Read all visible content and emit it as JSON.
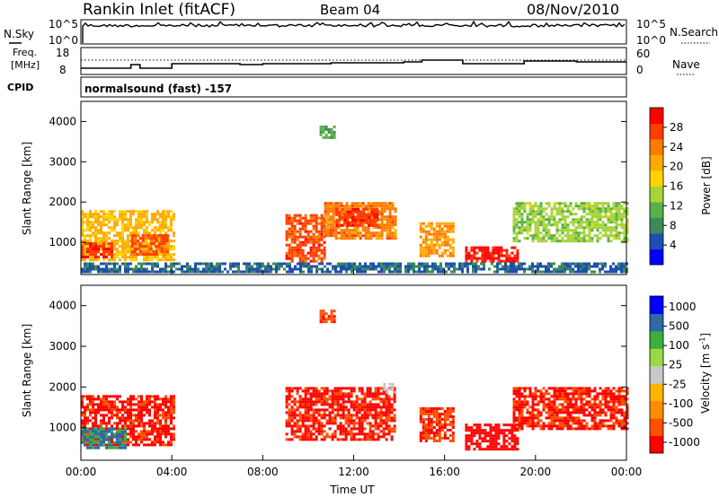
{
  "header": {
    "station": "Rankin Inlet (fitACF)",
    "beam": "Beam 04",
    "date": "08/Nov/2010"
  },
  "nsky_panel": {
    "left_label": "N.Sky",
    "right_label": "N.Search",
    "left_ticks": [
      "10^5",
      "10^0"
    ],
    "right_ticks": [
      "10^5",
      "10^0"
    ]
  },
  "freq_panel": {
    "left_label_1": "Freq.",
    "left_label_2": "[MHz]",
    "right_label": "Nave",
    "left_ticks": [
      "18",
      "8"
    ],
    "right_ticks": [
      "60",
      "0"
    ]
  },
  "cpid_panel": {
    "label": "CPID",
    "text": "normalsound (fast) -157"
  },
  "colors": {
    "power_scale": [
      "#0000ff",
      "#1e4fb0",
      "#3c8a5a",
      "#58b048",
      "#a8d43a",
      "#ffd400",
      "#ffaa00",
      "#ff7a00",
      "#ff3c00",
      "#ff0000"
    ],
    "velocity_scale": [
      "#ff0000",
      "#ff5000",
      "#ff8c00",
      "#ffb400",
      "#c8c8c8",
      "#9ad848",
      "#3cae3c",
      "#2c6aa8",
      "#0000ff"
    ]
  },
  "chart_data": [
    {
      "type": "heatmap",
      "name": "power",
      "ylabel": "Slant Range [km]",
      "xlabel": "",
      "ylim": [
        200,
        4500
      ],
      "xlim": [
        0,
        24
      ],
      "yticks": [
        "1000",
        "2000",
        "3000",
        "4000"
      ],
      "colorbar": {
        "label": "Power [dB]",
        "ticks": [
          "4",
          "8",
          "12",
          "16",
          "20",
          "24",
          "28"
        ],
        "range": [
          0,
          32
        ]
      },
      "echo_regions": [
        {
          "t0": 0.0,
          "t1": 4.1,
          "r0": 550,
          "r1": 1800,
          "value": 20
        },
        {
          "t0": 0.0,
          "t1": 1.4,
          "r0": 600,
          "r1": 1000,
          "value": 28
        },
        {
          "t0": 2.2,
          "t1": 3.8,
          "r0": 700,
          "r1": 1200,
          "value": 26
        },
        {
          "t0": 9.0,
          "t1": 10.7,
          "r0": 500,
          "r1": 1700,
          "value": 27
        },
        {
          "t0": 10.7,
          "t1": 13.8,
          "r0": 1100,
          "r1": 2000,
          "value": 24
        },
        {
          "t0": 11.2,
          "t1": 13.0,
          "r0": 1400,
          "r1": 1850,
          "value": 28
        },
        {
          "t0": 14.9,
          "t1": 16.4,
          "r0": 650,
          "r1": 1500,
          "value": 22
        },
        {
          "t0": 16.9,
          "t1": 19.2,
          "r0": 500,
          "r1": 900,
          "value": 30
        },
        {
          "t0": 19.0,
          "t1": 24.0,
          "r0": 1000,
          "r1": 2000,
          "value": 14
        },
        {
          "t0": 10.5,
          "t1": 11.2,
          "r0": 3600,
          "r1": 3900,
          "value": 10
        },
        {
          "t0": 0.0,
          "t1": 24.0,
          "r0": 250,
          "r1": 500,
          "value": 6
        }
      ]
    },
    {
      "type": "heatmap",
      "name": "velocity",
      "ylabel": "Slant Range [km]",
      "xlabel": "Time UT",
      "ylim": [
        200,
        4500
      ],
      "xlim": [
        0,
        24
      ],
      "yticks": [
        "1000",
        "2000",
        "3000",
        "4000"
      ],
      "xticks": [
        "00:00",
        "04:00",
        "08:00",
        "12:00",
        "16:00",
        "20:00",
        "00:00"
      ],
      "colorbar": {
        "label": "Velocity [m s^-1]",
        "ticks": [
          "1000",
          "500",
          "100",
          "25",
          "-25",
          "-100",
          "-500",
          "-1000"
        ]
      },
      "echo_regions": [
        {
          "t0": 0.0,
          "t1": 4.1,
          "r0": 550,
          "r1": 1800,
          "value": -300
        },
        {
          "t0": 0.0,
          "t1": 2.0,
          "r0": 500,
          "r1": 1000,
          "value": 50
        },
        {
          "t0": 9.0,
          "t1": 13.8,
          "r0": 700,
          "r1": 2000,
          "value": -300
        },
        {
          "t0": 13.3,
          "t1": 13.8,
          "r0": 1900,
          "r1": 2100,
          "value": 0
        },
        {
          "t0": 14.9,
          "t1": 16.4,
          "r0": 650,
          "r1": 1500,
          "value": -200
        },
        {
          "t0": 16.9,
          "t1": 19.2,
          "r0": 500,
          "r1": 1100,
          "value": -700
        },
        {
          "t0": 19.0,
          "t1": 24.0,
          "r0": 1000,
          "r1": 2000,
          "value": -250
        },
        {
          "t0": 10.5,
          "t1": 11.2,
          "r0": 3600,
          "r1": 3900,
          "value": -150
        }
      ]
    }
  ]
}
